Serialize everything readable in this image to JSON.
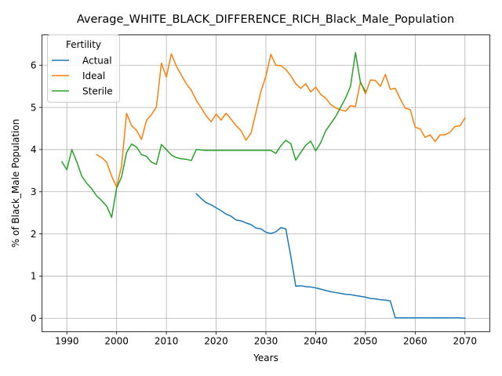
{
  "chart_data": {
    "type": "line",
    "title": "Average_WHITE_BLACK_DIFFERENCE_RICH_Black_Male_Population",
    "xlabel": "Years",
    "ylabel": "% of Black_Male Population",
    "xlim": [
      1985,
      2075
    ],
    "ylim": [
      -0.32,
      6.72
    ],
    "xticks": [
      1990,
      2000,
      2010,
      2020,
      2030,
      2040,
      2050,
      2060,
      2070
    ],
    "yticks": [
      0,
      1,
      2,
      3,
      4,
      5,
      6
    ],
    "grid": true,
    "legend": {
      "title": "Fertility",
      "placement": "top-left"
    },
    "series": [
      {
        "name": "Actual",
        "color": "#1f77b4",
        "x": [
          2016,
          2017,
          2018,
          2019,
          2020,
          2021,
          2022,
          2023,
          2024,
          2025,
          2026,
          2027,
          2028,
          2029,
          2030,
          2031,
          2032,
          2033,
          2034,
          2035,
          2036,
          2037,
          2038,
          2039,
          2040,
          2041,
          2042,
          2043,
          2044,
          2045,
          2046,
          2047,
          2048,
          2049,
          2050,
          2051,
          2052,
          2053,
          2054,
          2055,
          2056,
          2057,
          2058,
          2059,
          2060,
          2061,
          2062,
          2063,
          2064,
          2065,
          2066,
          2067,
          2068,
          2069,
          2070
        ],
        "y": [
          2.95,
          2.84,
          2.74,
          2.69,
          2.62,
          2.55,
          2.47,
          2.42,
          2.33,
          2.31,
          2.26,
          2.22,
          2.14,
          2.12,
          2.04,
          2.01,
          2.05,
          2.15,
          2.12,
          1.47,
          0.76,
          0.77,
          0.75,
          0.74,
          0.72,
          0.69,
          0.66,
          0.63,
          0.61,
          0.59,
          0.57,
          0.56,
          0.54,
          0.52,
          0.5,
          0.47,
          0.46,
          0.44,
          0.43,
          0.41,
          0.01,
          0.01,
          0.01,
          0.01,
          0.01,
          0.01,
          0.01,
          0.01,
          0.01,
          0.01,
          0.01,
          0.01,
          0.01,
          0.01,
          0.0
        ]
      },
      {
        "name": "Ideal",
        "color": "#ff7f0e",
        "x": [
          1996,
          1997,
          1998,
          1999,
          2000,
          2001,
          2002,
          2003,
          2004,
          2005,
          2006,
          2007,
          2008,
          2009,
          2010,
          2011,
          2012,
          2013,
          2014,
          2015,
          2016,
          2017,
          2018,
          2019,
          2020,
          2021,
          2022,
          2023,
          2024,
          2025,
          2026,
          2027,
          2028,
          2029,
          2030,
          2031,
          2032,
          2033,
          2034,
          2035,
          2036,
          2037,
          2038,
          2039,
          2040,
          2041,
          2042,
          2043,
          2044,
          2045,
          2046,
          2047,
          2048,
          2049,
          2050,
          2051,
          2052,
          2053,
          2054,
          2055,
          2056,
          2057,
          2058,
          2059,
          2060,
          2061,
          2062,
          2063,
          2064,
          2065,
          2066,
          2067,
          2068,
          2069,
          2070
        ],
        "y": [
          3.88,
          3.81,
          3.7,
          3.37,
          3.11,
          3.61,
          4.86,
          4.57,
          4.46,
          4.24,
          4.69,
          4.83,
          5.01,
          6.05,
          5.72,
          6.27,
          5.98,
          5.77,
          5.56,
          5.41,
          5.17,
          4.99,
          4.8,
          4.66,
          4.84,
          4.7,
          4.86,
          4.72,
          4.57,
          4.45,
          4.22,
          4.39,
          4.88,
          5.38,
          5.74,
          6.26,
          6.0,
          5.99,
          5.9,
          5.75,
          5.56,
          5.45,
          5.56,
          5.37,
          5.48,
          5.31,
          5.22,
          5.07,
          4.99,
          4.94,
          4.91,
          5.04,
          5.02,
          5.61,
          5.32,
          5.65,
          5.64,
          5.5,
          5.78,
          5.43,
          5.45,
          5.2,
          4.98,
          4.95,
          4.53,
          4.49,
          4.29,
          4.35,
          4.19,
          4.35,
          4.35,
          4.41,
          4.55,
          4.56,
          4.75
        ]
      },
      {
        "name": "Sterile",
        "color": "#2ca02c",
        "x": [
          1989,
          1990,
          1991,
          1992,
          1993,
          1994,
          1995,
          1996,
          1997,
          1998,
          1999,
          2000,
          2001,
          2002,
          2003,
          2004,
          2005,
          2006,
          2007,
          2008,
          2009,
          2010,
          2011,
          2012,
          2013,
          2014,
          2015,
          2016,
          2017,
          2018,
          2019,
          2020,
          2021,
          2022,
          2023,
          2024,
          2025,
          2026,
          2027,
          2028,
          2029,
          2030,
          2031,
          2032,
          2033,
          2034,
          2035,
          2036,
          2037,
          2038,
          2039,
          2040,
          2041,
          2042,
          2043,
          2044,
          2045,
          2046,
          2047,
          2048,
          2049,
          2050
        ],
        "y": [
          3.71,
          3.52,
          4.0,
          3.71,
          3.37,
          3.2,
          3.07,
          2.9,
          2.79,
          2.66,
          2.39,
          3.09,
          3.35,
          3.93,
          4.13,
          4.06,
          3.88,
          3.84,
          3.7,
          3.65,
          4.12,
          4.0,
          3.87,
          3.81,
          3.78,
          3.77,
          3.74,
          4.0,
          3.99,
          3.98,
          3.98,
          3.98,
          3.98,
          3.98,
          3.98,
          3.98,
          3.98,
          3.98,
          3.98,
          3.98,
          3.98,
          3.98,
          3.98,
          3.91,
          4.09,
          4.22,
          4.14,
          3.75,
          3.93,
          4.1,
          4.2,
          3.97,
          4.16,
          4.44,
          4.61,
          4.78,
          5.0,
          5.22,
          5.5,
          6.3,
          5.59,
          5.38
        ]
      }
    ]
  }
}
